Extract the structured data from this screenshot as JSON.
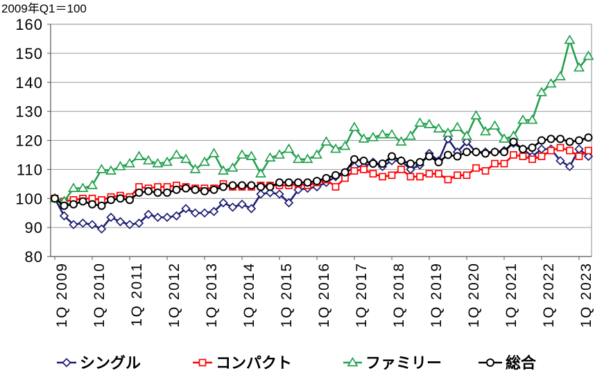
{
  "chart_data": {
    "type": "line",
    "ylabel": "2009年Q1＝100",
    "ylim": [
      80,
      160
    ],
    "yticks": [
      80,
      90,
      100,
      110,
      120,
      130,
      140,
      150,
      160
    ],
    "xtick_labels": [
      "1Q 2009",
      "1Q 2010",
      "1Q 2011",
      "1Q 2012",
      "1Q 2013",
      "1Q 2014",
      "1Q 2015",
      "1Q 2016",
      "1Q 2017",
      "1Q 2018",
      "1Q 2019",
      "1Q 2020",
      "1Q 2021",
      "1Q 2022",
      "1Q 2023"
    ],
    "grid": true,
    "legend": "bottom",
    "series": [
      {
        "name": "シングル",
        "color": "#1c1c73",
        "marker": "diamond",
        "values": [
          100,
          94,
          91,
          91.5,
          91,
          89.5,
          93.5,
          92,
          91,
          91.5,
          94.5,
          93.5,
          93.5,
          94,
          96.5,
          95,
          95,
          95.5,
          98.5,
          97,
          98,
          96.5,
          101.5,
          102,
          101.5,
          98.5,
          103,
          103.5,
          104,
          105.5,
          107.5,
          108.5,
          111,
          111,
          112.5,
          111,
          113,
          113,
          110,
          111.5,
          115.5,
          113,
          120.5,
          116,
          119.5,
          116,
          116,
          116,
          116.5,
          119,
          117,
          114.5,
          117,
          117,
          113,
          111,
          117,
          114.5
        ]
      },
      {
        "name": "コンパクト",
        "color": "#ff0000",
        "marker": "square",
        "values": [
          100,
          99,
          99.5,
          100,
          100,
          99.5,
          100.5,
          101,
          100.5,
          104,
          103.5,
          104,
          104,
          104.5,
          104,
          103.5,
          103.5,
          103.5,
          105,
          104,
          104,
          104,
          104.5,
          104.5,
          104.5,
          104.5,
          105,
          104.5,
          105.5,
          106.5,
          104,
          107,
          109.5,
          110,
          108.5,
          107.5,
          108,
          110,
          107.5,
          107.5,
          108.5,
          108.5,
          106.5,
          108,
          108,
          110.5,
          109.5,
          112,
          112,
          115,
          114.5,
          113.5,
          114.5,
          116.5,
          117.5,
          116.5,
          114.5,
          116.5
        ]
      },
      {
        "name": "ファミリー",
        "color": "#21a04d",
        "marker": "triangle",
        "values": [
          100,
          99,
          103.5,
          103.5,
          104.5,
          110,
          109.5,
          111,
          112,
          114.5,
          113,
          112,
          112.5,
          115,
          113.5,
          110,
          112.5,
          115.5,
          109.5,
          110.5,
          115,
          114.5,
          108.5,
          114,
          115,
          117,
          113.5,
          113.5,
          115,
          119.5,
          117,
          118,
          124.5,
          120.5,
          121,
          122,
          122,
          119.5,
          121.5,
          126,
          125.5,
          124,
          122.5,
          124.5,
          121.5,
          128.5,
          123,
          125,
          120.5,
          121.5,
          127,
          127,
          136.5,
          139.5,
          142,
          154.5,
          145,
          149
        ]
      },
      {
        "name": "総合",
        "color": "#000000",
        "marker": "circle",
        "values": [
          100,
          97.5,
          98,
          99,
          98,
          97.5,
          99.5,
          100,
          99.5,
          102,
          102.5,
          102,
          102,
          103,
          103.5,
          103,
          102.5,
          103,
          104,
          104.5,
          104.5,
          104.5,
          104,
          104,
          105.5,
          105.5,
          105.5,
          105.5,
          106,
          107,
          108,
          109,
          113.5,
          113,
          112,
          112,
          114.5,
          113,
          112,
          112.5,
          114.5,
          112.5,
          115,
          114.5,
          116,
          116,
          115.5,
          116,
          116,
          119.5,
          117,
          117.5,
          120,
          120.5,
          120.5,
          119.5,
          120,
          121
        ]
      }
    ]
  }
}
